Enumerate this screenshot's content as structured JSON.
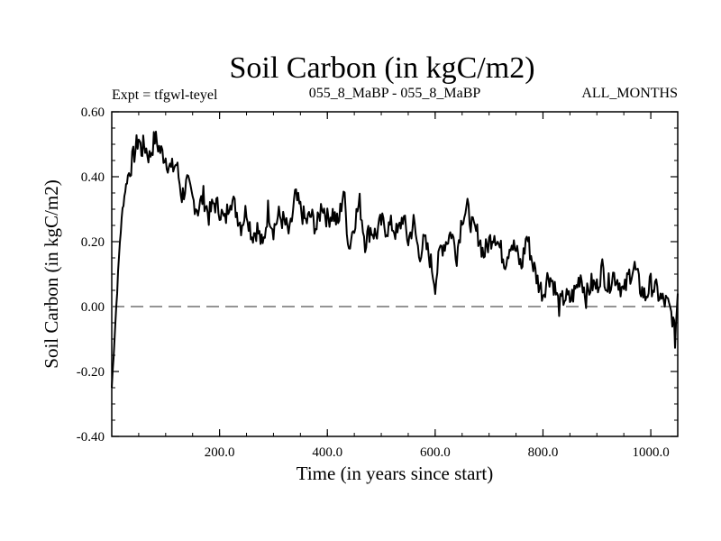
{
  "chart_data": {
    "type": "line",
    "title": "Soil Carbon (in kgC/m2)",
    "subtitle_left": "Expt = tfgwl-teyel",
    "subtitle_center": "055_8_MaBP - 055_8_MaBP",
    "subtitle_right": "ALL_MONTHS",
    "xlabel": "Time (in years since start)",
    "ylabel": "Soil Carbon (in kgC/m2)",
    "xlim": [
      0,
      1050
    ],
    "ylim": [
      -0.4,
      0.6
    ],
    "x_ticks": [
      200,
      400,
      600,
      800,
      1000
    ],
    "x_tick_labels": [
      "200.0",
      "400.0",
      "600.0",
      "800.0",
      "1000.0"
    ],
    "y_ticks": [
      -0.4,
      -0.2,
      0.0,
      0.2,
      0.4,
      0.6
    ],
    "y_tick_labels": [
      "-0.40",
      "-0.20",
      "0.00",
      "0.20",
      "0.40",
      "0.60"
    ],
    "reference_line": {
      "y": 0.0,
      "style": "dashed"
    },
    "series": [
      {
        "name": "Soil Carbon",
        "x": [
          0,
          5,
          10,
          15,
          20,
          25,
          30,
          40,
          50,
          55,
          60,
          70,
          80,
          90,
          100,
          110,
          120,
          130,
          140,
          150,
          160,
          170,
          180,
          190,
          200,
          210,
          220,
          230,
          240,
          250,
          260,
          270,
          280,
          290,
          300,
          310,
          320,
          330,
          340,
          350,
          360,
          370,
          380,
          390,
          400,
          410,
          420,
          430,
          440,
          450,
          460,
          470,
          480,
          490,
          500,
          510,
          520,
          530,
          540,
          550,
          560,
          570,
          580,
          590,
          600,
          610,
          620,
          630,
          640,
          650,
          660,
          670,
          680,
          690,
          700,
          710,
          720,
          730,
          740,
          750,
          760,
          770,
          780,
          790,
          800,
          810,
          820,
          830,
          840,
          850,
          860,
          870,
          880,
          890,
          900,
          910,
          920,
          930,
          940,
          950,
          960,
          970,
          980,
          990,
          1000,
          1010,
          1020,
          1030,
          1040,
          1045,
          1050
        ],
        "y": [
          -0.25,
          -0.1,
          0.05,
          0.2,
          0.3,
          0.36,
          0.4,
          0.46,
          0.52,
          0.48,
          0.5,
          0.46,
          0.52,
          0.48,
          0.46,
          0.42,
          0.44,
          0.34,
          0.38,
          0.33,
          0.3,
          0.34,
          0.28,
          0.32,
          0.3,
          0.26,
          0.34,
          0.3,
          0.25,
          0.3,
          0.22,
          0.24,
          0.18,
          0.3,
          0.24,
          0.28,
          0.26,
          0.22,
          0.34,
          0.3,
          0.26,
          0.28,
          0.24,
          0.32,
          0.27,
          0.29,
          0.25,
          0.36,
          0.18,
          0.26,
          0.32,
          0.2,
          0.24,
          0.22,
          0.26,
          0.24,
          0.25,
          0.22,
          0.28,
          0.2,
          0.26,
          0.16,
          0.2,
          0.15,
          0.07,
          0.18,
          0.2,
          0.23,
          0.16,
          0.28,
          0.3,
          0.24,
          0.22,
          0.16,
          0.2,
          0.23,
          0.18,
          0.14,
          0.2,
          0.17,
          0.12,
          0.22,
          0.14,
          0.08,
          0.04,
          0.1,
          0.07,
          0.0,
          0.03,
          0.02,
          0.05,
          0.1,
          0.03,
          0.07,
          0.06,
          0.12,
          0.06,
          0.1,
          0.08,
          0.04,
          0.1,
          0.12,
          0.06,
          0.03,
          0.07,
          0.05,
          0.02,
          0.01,
          -0.03,
          -0.1,
          0.04
        ]
      }
    ]
  }
}
